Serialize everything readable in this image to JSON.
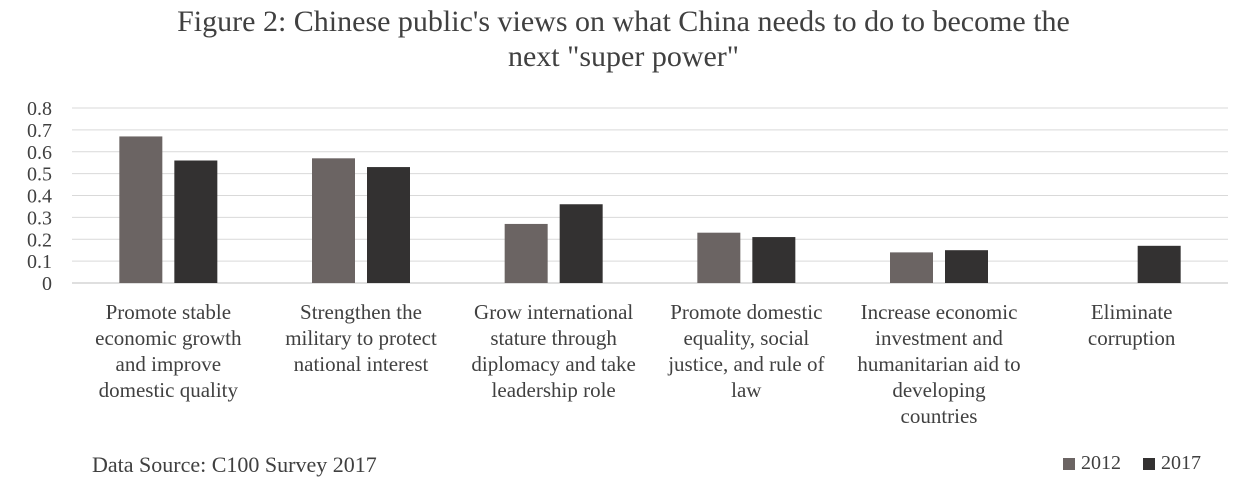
{
  "title_lines": [
    "Figure 2: Chinese public's views on what China needs to do to become the",
    "next \"super power\""
  ],
  "source": "Data Source: C100 Survey 2017",
  "colors": {
    "s2012": "#6b6463",
    "s2017": "#333131",
    "grid": "#d9d9d9",
    "axis": "#bfbfbf"
  },
  "chart_data": {
    "type": "bar",
    "categories": [
      [
        "Promote stable",
        "economic growth",
        "and improve",
        "domestic quality"
      ],
      [
        "Strengthen the",
        "military to protect",
        "national interest"
      ],
      [
        "Grow international",
        "stature through",
        "diplomacy and take",
        "leadership role"
      ],
      [
        "Promote domestic",
        "equality, social",
        "justice, and rule of",
        "law"
      ],
      [
        "Increase economic",
        "investment and",
        "humanitarian aid to",
        "developing",
        "countries"
      ],
      [
        "Eliminate",
        "corruption"
      ]
    ],
    "series": [
      {
        "name": "2012",
        "values": [
          0.67,
          0.57,
          0.27,
          0.23,
          0.14,
          null
        ]
      },
      {
        "name": "2017",
        "values": [
          0.56,
          0.53,
          0.36,
          0.21,
          0.15,
          0.17
        ]
      }
    ],
    "ylim": [
      0,
      0.8
    ],
    "yticks": [
      "0",
      "0.1",
      "0.2",
      "0.3",
      "0.4",
      "0.5",
      "0.6",
      "0.7",
      "0.8"
    ],
    "grid": true,
    "legend_position": "bottom-right"
  }
}
